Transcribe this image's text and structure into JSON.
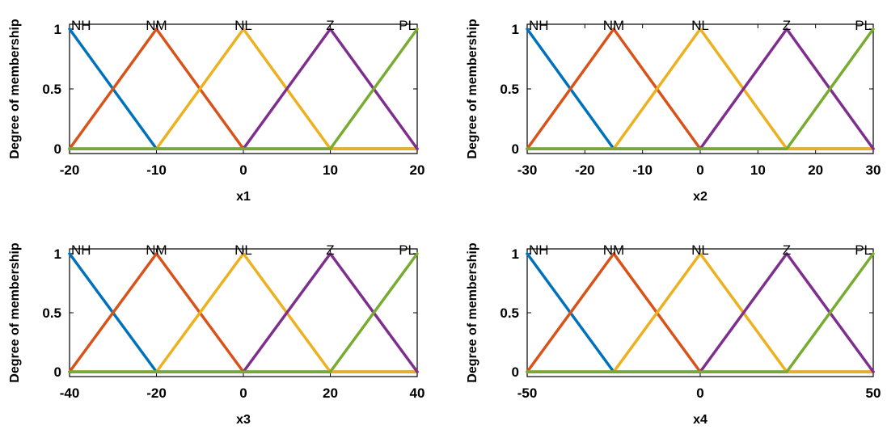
{
  "chart_data": [
    {
      "type": "line",
      "xlabel": "x1",
      "ylabel": "Degree of membership",
      "xlim": [
        -20,
        20
      ],
      "ylim": [
        0,
        1
      ],
      "xticks": [
        -20,
        -10,
        0,
        10,
        20
      ],
      "xtick_labels": [
        "-20",
        "-10",
        "0",
        "10",
        "20"
      ],
      "yticks": [
        0,
        0.5,
        1
      ],
      "ytick_labels": [
        "0",
        "0.5",
        "1"
      ],
      "series": [
        {
          "name": "NH",
          "color": "#0072BD",
          "x": [
            -20,
            -10,
            20
          ],
          "y": [
            1,
            0,
            0
          ]
        },
        {
          "name": "NM",
          "color": "#D95319",
          "x": [
            -20,
            -10,
            0,
            20
          ],
          "y": [
            0,
            1,
            0,
            0
          ]
        },
        {
          "name": "NL",
          "color": "#EDB120",
          "x": [
            -20,
            -10,
            0,
            10,
            20
          ],
          "y": [
            0,
            0,
            1,
            0,
            0
          ]
        },
        {
          "name": "Z",
          "color": "#7E2F8E",
          "x": [
            -20,
            0,
            10,
            20
          ],
          "y": [
            0,
            0,
            1,
            0
          ]
        },
        {
          "name": "PL",
          "color": "#77AC30",
          "x": [
            -20,
            10,
            20
          ],
          "y": [
            0,
            0,
            1
          ]
        }
      ],
      "mf_labels": [
        {
          "text": "NH",
          "x": -20
        },
        {
          "text": "NM",
          "x": -10
        },
        {
          "text": "NL",
          "x": 0
        },
        {
          "text": "Z",
          "x": 10
        },
        {
          "text": "PL",
          "x": 20
        }
      ]
    },
    {
      "type": "line",
      "xlabel": "x2",
      "ylabel": "Degree of membership",
      "xlim": [
        -30,
        30
      ],
      "ylim": [
        0,
        1
      ],
      "xticks": [
        -30,
        -20,
        -10,
        0,
        10,
        20,
        30
      ],
      "xtick_labels": [
        "-30",
        "-20",
        "-10",
        "0",
        "10",
        "20",
        "30"
      ],
      "yticks": [
        0,
        0.5,
        1
      ],
      "ytick_labels": [
        "0",
        "0.5",
        "1"
      ],
      "series": [
        {
          "name": "NH",
          "color": "#0072BD",
          "x": [
            -30,
            -15,
            30
          ],
          "y": [
            1,
            0,
            0
          ]
        },
        {
          "name": "NM",
          "color": "#D95319",
          "x": [
            -30,
            -15,
            0,
            30
          ],
          "y": [
            0,
            1,
            0,
            0
          ]
        },
        {
          "name": "NL",
          "color": "#EDB120",
          "x": [
            -30,
            -15,
            0,
            15,
            30
          ],
          "y": [
            0,
            0,
            1,
            0,
            0
          ]
        },
        {
          "name": "Z",
          "color": "#7E2F8E",
          "x": [
            -30,
            0,
            15,
            30
          ],
          "y": [
            0,
            0,
            1,
            0
          ]
        },
        {
          "name": "PL",
          "color": "#77AC30",
          "x": [
            -30,
            15,
            30
          ],
          "y": [
            0,
            0,
            1
          ]
        }
      ],
      "mf_labels": [
        {
          "text": "NH",
          "x": -30
        },
        {
          "text": "NM",
          "x": -15
        },
        {
          "text": "NL",
          "x": 0
        },
        {
          "text": "Z",
          "x": 15
        },
        {
          "text": "PL",
          "x": 30
        }
      ]
    },
    {
      "type": "line",
      "xlabel": "x3",
      "ylabel": "Degree of membership",
      "xlim": [
        -40,
        40
      ],
      "ylim": [
        0,
        1
      ],
      "xticks": [
        -40,
        -20,
        0,
        20,
        40
      ],
      "xtick_labels": [
        "-40",
        "-20",
        "0",
        "20",
        "40"
      ],
      "yticks": [
        0,
        0.5,
        1
      ],
      "ytick_labels": [
        "0",
        "0.5",
        "1"
      ],
      "series": [
        {
          "name": "NH",
          "color": "#0072BD",
          "x": [
            -40,
            -20,
            40
          ],
          "y": [
            1,
            0,
            0
          ]
        },
        {
          "name": "NM",
          "color": "#D95319",
          "x": [
            -40,
            -20,
            0,
            40
          ],
          "y": [
            0,
            1,
            0,
            0
          ]
        },
        {
          "name": "NL",
          "color": "#EDB120",
          "x": [
            -40,
            -20,
            0,
            20,
            40
          ],
          "y": [
            0,
            0,
            1,
            0,
            0
          ]
        },
        {
          "name": "Z",
          "color": "#7E2F8E",
          "x": [
            -40,
            0,
            20,
            40
          ],
          "y": [
            0,
            0,
            1,
            0
          ]
        },
        {
          "name": "PL",
          "color": "#77AC30",
          "x": [
            -40,
            20,
            40
          ],
          "y": [
            0,
            0,
            1
          ]
        }
      ],
      "mf_labels": [
        {
          "text": "NH",
          "x": -40
        },
        {
          "text": "NM",
          "x": -20
        },
        {
          "text": "NL",
          "x": 0
        },
        {
          "text": "Z",
          "x": 20
        },
        {
          "text": "PL",
          "x": 40
        }
      ]
    },
    {
      "type": "line",
      "xlabel": "x4",
      "ylabel": "Degree of membership",
      "xlim": [
        -50,
        50
      ],
      "ylim": [
        0,
        1
      ],
      "xticks": [
        -50,
        0,
        50
      ],
      "xtick_labels": [
        "-50",
        "0",
        "50"
      ],
      "yticks": [
        0,
        0.5,
        1
      ],
      "ytick_labels": [
        "0",
        "0.5",
        "1"
      ],
      "series": [
        {
          "name": "NH",
          "color": "#0072BD",
          "x": [
            -50,
            -25,
            50
          ],
          "y": [
            1,
            0,
            0
          ]
        },
        {
          "name": "NM",
          "color": "#D95319",
          "x": [
            -50,
            -25,
            0,
            50
          ],
          "y": [
            0,
            1,
            0,
            0
          ]
        },
        {
          "name": "NL",
          "color": "#EDB120",
          "x": [
            -50,
            -25,
            0,
            25,
            50
          ],
          "y": [
            0,
            0,
            1,
            0,
            0
          ]
        },
        {
          "name": "Z",
          "color": "#7E2F8E",
          "x": [
            -50,
            0,
            25,
            50
          ],
          "y": [
            0,
            0,
            1,
            0
          ]
        },
        {
          "name": "PL",
          "color": "#77AC30",
          "x": [
            -50,
            25,
            50
          ],
          "y": [
            0,
            0,
            1
          ]
        }
      ],
      "mf_labels": [
        {
          "text": "NH",
          "x": -50
        },
        {
          "text": "NM",
          "x": -25
        },
        {
          "text": "NL",
          "x": 0
        },
        {
          "text": "Z",
          "x": 25
        },
        {
          "text": "PL",
          "x": 50
        }
      ]
    }
  ]
}
